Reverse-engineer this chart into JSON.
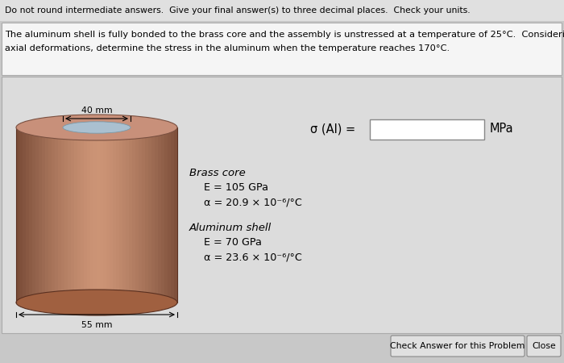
{
  "header_text": "Do not round intermediate answers.  Give your final answer(s) to three decimal places.  Check your units.",
  "problem_text_line1": "The aluminum shell is fully bonded to the brass core and the assembly is unstressed at a temperature of 25°C.  Considering only",
  "problem_text_line2": "axial deformations, determine the stress in the aluminum when the temperature reaches 170°C.",
  "dim1_label": "40 mm",
  "dim2_label": "55 mm",
  "brass_title": "Brass core",
  "brass_E": "E = 105 GPa",
  "brass_alpha": "α = 20.9 × 10⁻⁶/°C",
  "al_title": "Aluminum shell",
  "al_E": "E = 70 GPa",
  "al_alpha": "α = 23.6 × 10⁻⁶/°C",
  "sigma_label": "σ (Al) =",
  "unit_label": "MPa",
  "btn1_text": "Check Answer for this Problem",
  "btn2_text": "Close"
}
